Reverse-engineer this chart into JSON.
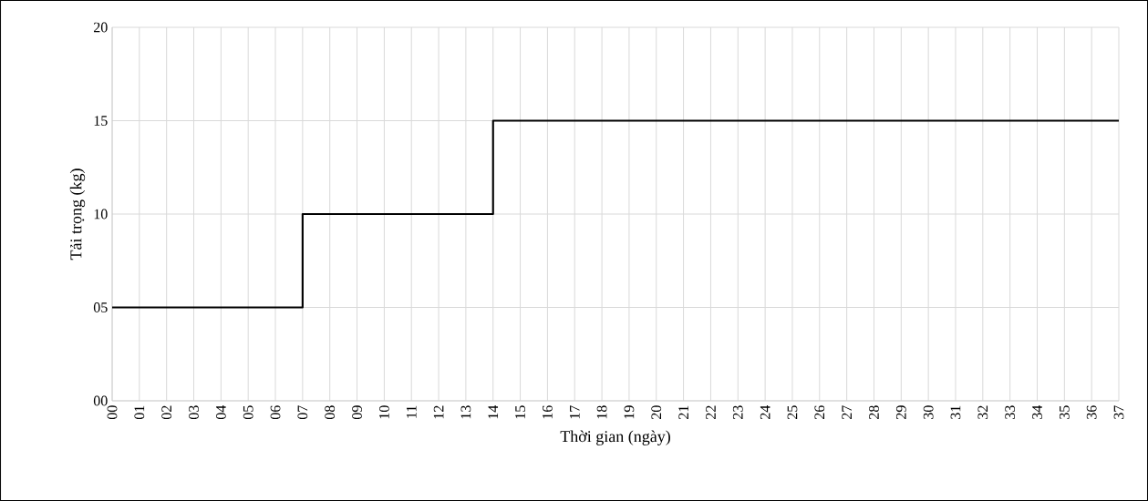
{
  "chart_data": {
    "type": "step",
    "xlabel": "Thời gian (ngày)",
    "ylabel": "Tải trọng (kg)",
    "x": [
      0,
      7,
      14,
      37
    ],
    "values": [
      5,
      10,
      15,
      15
    ],
    "color": "#000000",
    "xlim": [
      0,
      37
    ],
    "xticks": [
      {
        "value": 0,
        "label": "00"
      },
      {
        "value": 1,
        "label": "01"
      },
      {
        "value": 2,
        "label": "02"
      },
      {
        "value": 3,
        "label": "03"
      },
      {
        "value": 4,
        "label": "04"
      },
      {
        "value": 5,
        "label": "05"
      },
      {
        "value": 6,
        "label": "06"
      },
      {
        "value": 7,
        "label": "07"
      },
      {
        "value": 8,
        "label": "08"
      },
      {
        "value": 9,
        "label": "09"
      },
      10,
      11,
      12,
      13,
      14,
      15,
      16,
      17,
      18,
      19,
      20,
      21,
      22,
      23,
      24,
      25,
      26,
      27,
      28,
      29,
      30,
      31,
      32,
      33,
      34,
      35,
      36,
      37
    ],
    "ylim": [
      0,
      20
    ],
    "yticks": [
      {
        "value": 0,
        "label": "00"
      },
      {
        "value": 5,
        "label": "05"
      },
      10,
      15,
      20
    ],
    "grid": true,
    "marker": "none",
    "line_style": "solid"
  }
}
